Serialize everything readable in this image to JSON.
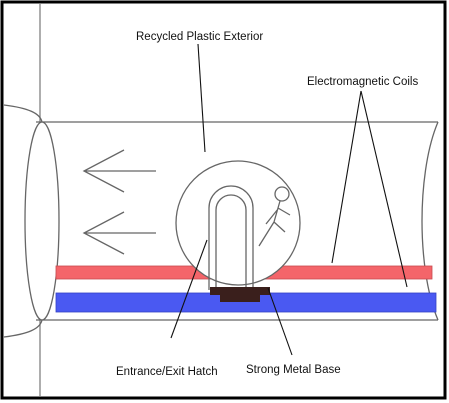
{
  "labels": {
    "exterior": "Recycled Plastic Exterior",
    "coils": "Electromagnetic Coils",
    "hatch": "Entrance/Exit Hatch",
    "base": "Strong Metal Base"
  },
  "colors": {
    "frame": "#000000",
    "line": "#666666",
    "red_stripe": "#f4656a",
    "blue_stripe": "#4a59f2",
    "base": "#3a1f1c"
  },
  "icons": {
    "direction": "arrow-left-icon",
    "person": "stick-figure-icon"
  }
}
